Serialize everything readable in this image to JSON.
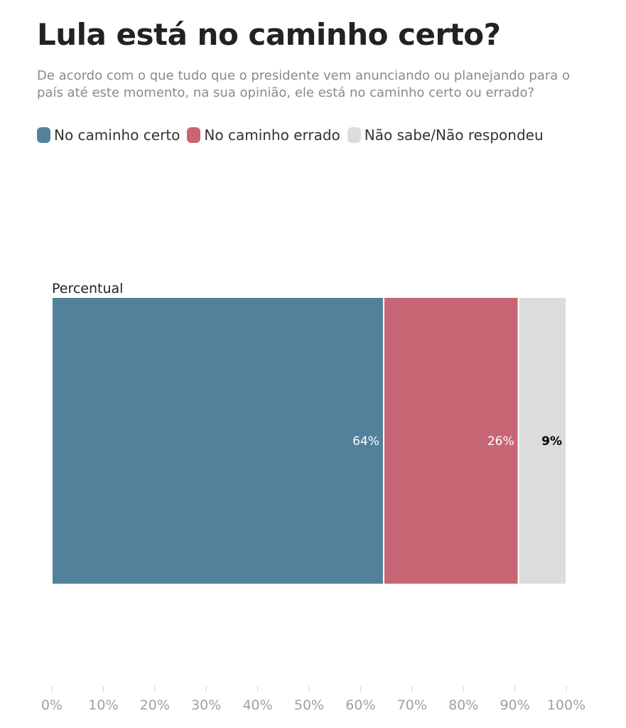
{
  "chart_data": {
    "type": "bar",
    "orientation": "horizontal",
    "stacked": true,
    "title": "Lula está no caminho certo?",
    "subtitle": "De acordo com o que tudo que o presidente vem anunciando ou planejando para o país até este momento, na sua opinião, ele está no caminho certo ou errado?",
    "categories": [
      "Percentual"
    ],
    "series": [
      {
        "name": "No caminho certo",
        "values": [
          64.5
        ],
        "label": "64%",
        "color": "#52819b",
        "label_color": "#ffffff"
      },
      {
        "name": "No caminho errado",
        "values": [
          26.2
        ],
        "label": "26%",
        "color": "#c86574",
        "label_color": "#ffffff"
      },
      {
        "name": "Não sabe/Não respondeu",
        "values": [
          9.3
        ],
        "label": "9%",
        "color": "#dcdcdc",
        "label_color": "#000000"
      }
    ],
    "xlim": [
      0,
      100
    ],
    "ticks": [
      "0%",
      "10%",
      "20%",
      "30%",
      "40%",
      "50%",
      "60%",
      "70%",
      "80%",
      "90%",
      "100%"
    ],
    "legend_position": "top-left",
    "grid": false
  }
}
